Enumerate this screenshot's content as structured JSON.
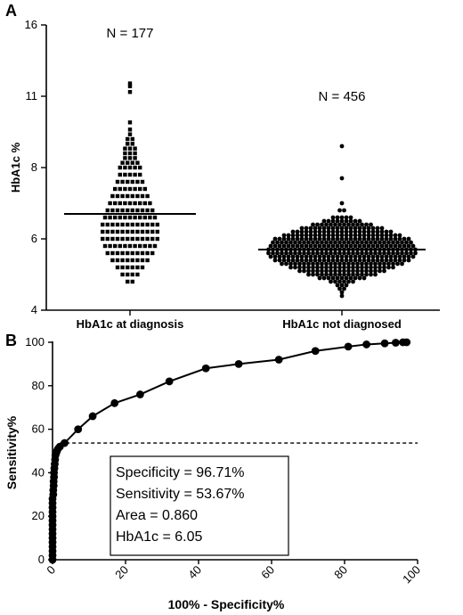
{
  "panel_a": {
    "label": "A",
    "chart_data": {
      "type": "scatter",
      "ylabel": "HbA1c %",
      "yticks": [
        4,
        6,
        8,
        11,
        16
      ],
      "categories": [
        "HbA1c at diagnosis",
        "HbA1c not diagnosed"
      ],
      "groups": [
        {
          "name": "HbA1c at diagnosis",
          "n_label": "N = 177",
          "median": 6.7,
          "dist": [
            [
              11.9,
              1
            ],
            [
              11.7,
              1
            ],
            [
              11.3,
              1
            ],
            [
              9.9,
              1
            ],
            [
              9.6,
              1
            ],
            [
              9.4,
              1
            ],
            [
              9.2,
              2
            ],
            [
              9.0,
              2
            ],
            [
              8.8,
              3
            ],
            [
              8.6,
              3
            ],
            [
              8.4,
              3
            ],
            [
              8.2,
              4
            ],
            [
              8.0,
              5
            ],
            [
              7.8,
              5
            ],
            [
              7.6,
              6
            ],
            [
              7.4,
              7
            ],
            [
              7.2,
              8
            ],
            [
              7.0,
              9
            ],
            [
              6.8,
              10
            ],
            [
              6.6,
              11
            ],
            [
              6.4,
              12
            ],
            [
              6.2,
              12
            ],
            [
              6.0,
              12
            ],
            [
              5.8,
              11
            ],
            [
              5.6,
              10
            ],
            [
              5.4,
              8
            ],
            [
              5.2,
              6
            ],
            [
              5.0,
              4
            ],
            [
              4.8,
              2
            ]
          ]
        },
        {
          "name": "HbA1c not diagnosed",
          "n_label": "N = 456",
          "median": 5.7,
          "dist": [
            [
              8.9,
              1
            ],
            [
              7.7,
              1
            ],
            [
              7.0,
              1
            ],
            [
              6.8,
              2
            ],
            [
              6.6,
              5
            ],
            [
              6.5,
              9
            ],
            [
              6.4,
              14
            ],
            [
              6.3,
              19
            ],
            [
              6.2,
              23
            ],
            [
              6.1,
              27
            ],
            [
              6.0,
              31
            ],
            [
              5.9,
              32
            ],
            [
              5.8,
              33
            ],
            [
              5.7,
              34
            ],
            [
              5.6,
              34
            ],
            [
              5.5,
              33
            ],
            [
              5.4,
              31
            ],
            [
              5.3,
              28
            ],
            [
              5.2,
              24
            ],
            [
              5.1,
              20
            ],
            [
              5.0,
              16
            ],
            [
              4.9,
              11
            ],
            [
              4.8,
              6
            ],
            [
              4.7,
              3
            ],
            [
              4.6,
              2
            ],
            [
              4.5,
              1
            ],
            [
              4.4,
              1
            ]
          ]
        }
      ]
    }
  },
  "panel_b": {
    "label": "B",
    "chart_data": {
      "type": "line",
      "xlabel": "100% - Specificity%",
      "ylabel": "Sensitivity%",
      "xlim": [
        0,
        100
      ],
      "ylim": [
        0,
        100
      ],
      "xticks": [
        0,
        20,
        40,
        60,
        80,
        100
      ],
      "yticks": [
        0,
        20,
        40,
        60,
        80,
        100
      ],
      "cutoff_y": 53.67,
      "x": [
        0,
        0,
        0,
        0,
        0,
        0,
        0,
        0,
        0,
        0,
        0,
        0,
        0,
        0,
        0,
        0.2,
        0.2,
        0.3,
        0.3,
        0.4,
        0.4,
        0.5,
        0.6,
        0.7,
        0.8,
        1.0,
        1.2,
        1.5,
        2,
        3.3,
        7,
        11,
        17,
        24,
        32,
        42,
        51,
        62,
        72,
        81,
        86,
        91,
        94,
        96,
        97
      ],
      "y": [
        0,
        2,
        4,
        6,
        8,
        10,
        12,
        14,
        16,
        18,
        20,
        22,
        24,
        26,
        28,
        30,
        32,
        34,
        36,
        38,
        40,
        42,
        44,
        46,
        48,
        49,
        50,
        51,
        52,
        53.67,
        60,
        66,
        72,
        76,
        82,
        88,
        90,
        92,
        96,
        98,
        99,
        99.5,
        99.8,
        100,
        100
      ]
    },
    "annotation": {
      "lines": [
        "Specificity = 96.71%",
        "Sensitivity = 53.67%",
        "Area = 0.860",
        "HbA1c = 6.05"
      ]
    }
  }
}
